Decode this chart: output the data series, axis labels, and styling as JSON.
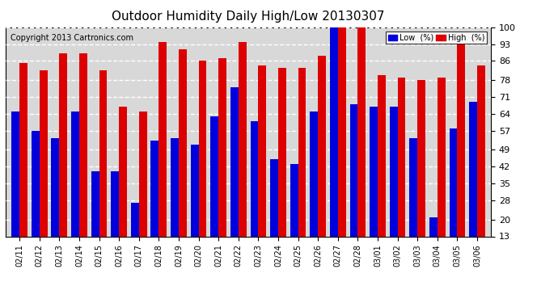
{
  "title": "Outdoor Humidity Daily High/Low 20130307",
  "copyright": "Copyright 2013 Cartronics.com",
  "legend_low": "Low  (%)",
  "legend_high": "High  (%)",
  "low_color": "#0000dd",
  "high_color": "#dd0000",
  "background_color": "#ffffff",
  "plot_bg_color": "#d8d8d8",
  "grid_color": "#ffffff",
  "yticks": [
    13,
    20,
    28,
    35,
    42,
    49,
    57,
    64,
    71,
    78,
    86,
    93,
    100
  ],
  "ylim": [
    13,
    100
  ],
  "dates": [
    "02/11",
    "02/12",
    "02/13",
    "02/14",
    "02/15",
    "02/16",
    "02/17",
    "02/18",
    "02/19",
    "02/20",
    "02/21",
    "02/22",
    "02/23",
    "02/24",
    "02/25",
    "02/26",
    "02/27",
    "02/28",
    "03/01",
    "03/02",
    "03/03",
    "03/04",
    "03/05",
    "03/06"
  ],
  "high": [
    85,
    82,
    89,
    89,
    82,
    67,
    65,
    94,
    91,
    86,
    87,
    94,
    84,
    83,
    83,
    88,
    100,
    100,
    80,
    79,
    78,
    79,
    93,
    84
  ],
  "low": [
    65,
    57,
    54,
    65,
    40,
    40,
    27,
    53,
    54,
    51,
    63,
    75,
    61,
    45,
    43,
    65,
    100,
    68,
    67,
    67,
    54,
    21,
    58,
    69
  ]
}
